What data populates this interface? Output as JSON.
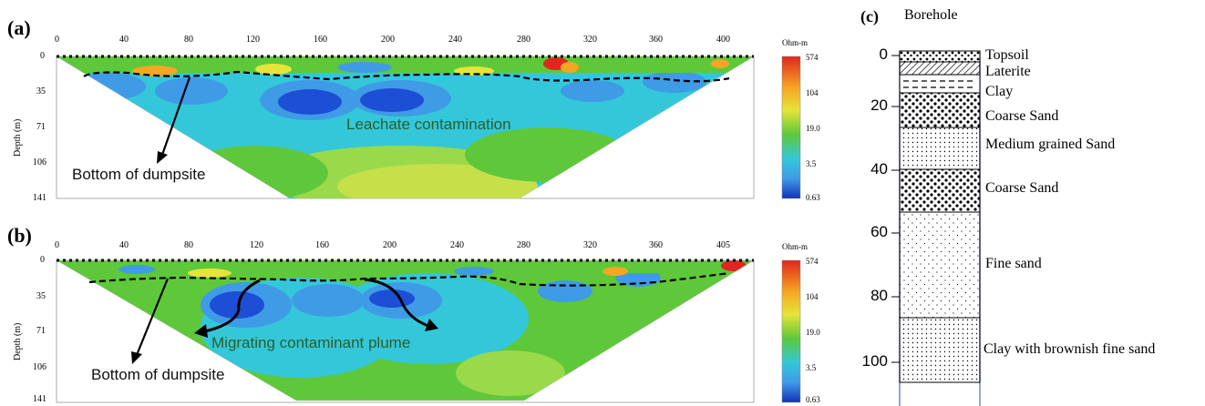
{
  "panels": {
    "a": {
      "letter": "(a)",
      "x_ticks": [
        "0",
        "40",
        "80",
        "120",
        "160",
        "200",
        "240",
        "280",
        "320",
        "360",
        "400"
      ],
      "depth_ticks": [
        "0",
        "35",
        "71",
        "106",
        "141"
      ],
      "depth_label": "Depth (m)",
      "unit": "Ohm-m",
      "scale_values": [
        "574",
        "104",
        "19.0",
        "3.5",
        "0.63"
      ],
      "annotations": {
        "contamination": "Leachate contamination",
        "bottom": "Bottom of dumpsite"
      }
    },
    "b": {
      "letter": "(b)",
      "x_ticks": [
        "0",
        "40",
        "80",
        "120",
        "160",
        "200",
        "240",
        "280",
        "320",
        "360",
        "405"
      ],
      "depth_ticks": [
        "0",
        "35",
        "71",
        "106",
        "141"
      ],
      "depth_label": "Depth (m)",
      "unit": "Ohm-m",
      "scale_values": [
        "574",
        "104",
        "19.0",
        "3.5",
        "0.63"
      ],
      "annotations": {
        "plume": "Migrating contaminant plume",
        "bottom": "Bottom of dumpsite"
      }
    }
  },
  "borehole": {
    "letter": "(c)",
    "title": "Borehole",
    "depths": [
      "0",
      "20",
      "40",
      "60",
      "80",
      "100"
    ],
    "layers": [
      "Topsoil",
      "Laterite",
      "Clay",
      "Coarse Sand",
      "Medium grained Sand",
      "Coarse Sand",
      "Fine sand",
      "Clay with brownish fine sand"
    ]
  },
  "colors": {
    "high": "#e0261e",
    "orange": "#f5a623",
    "yellow": "#e6e43a",
    "green": "#5ec83a",
    "cyan": "#34c7d9",
    "light_blue": "#3f9be6",
    "blue": "#1d4fd6",
    "low": "#1233b8"
  }
}
